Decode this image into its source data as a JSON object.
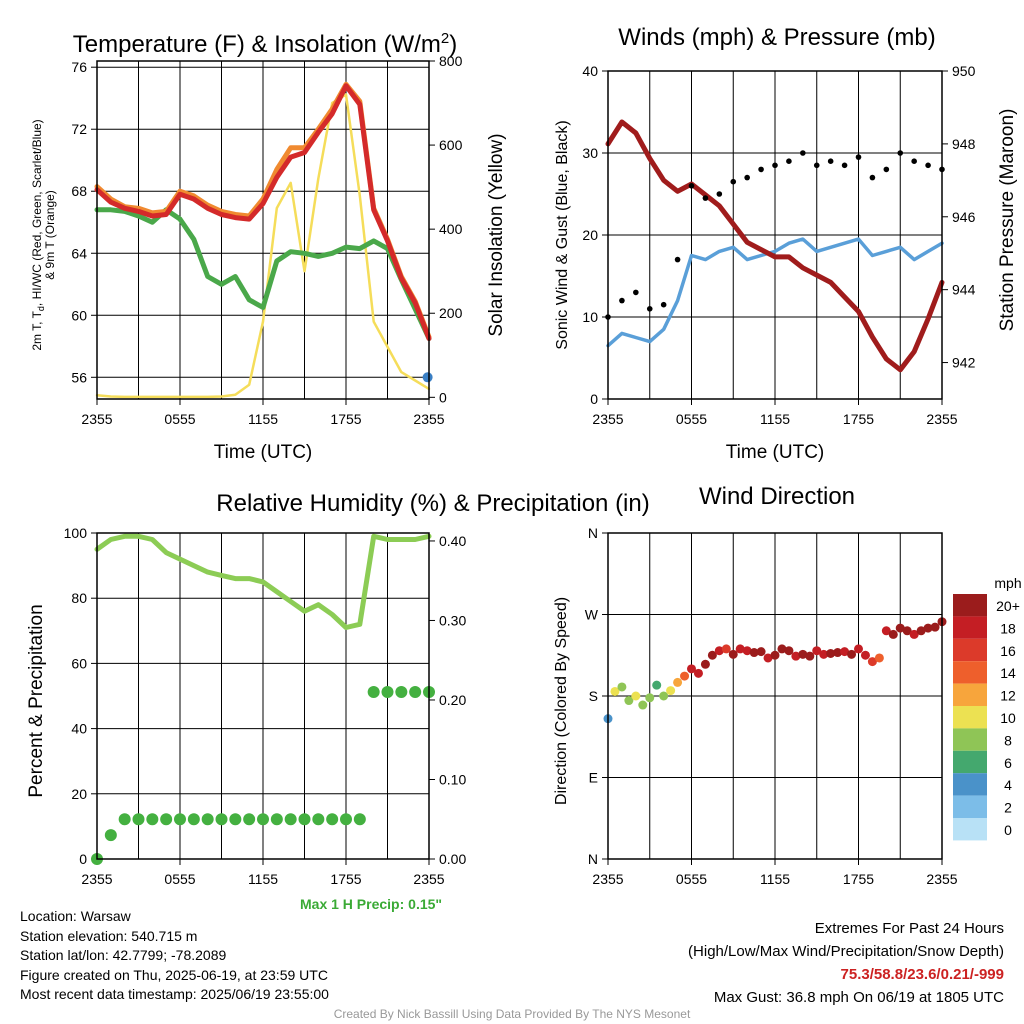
{
  "colors": {
    "red": "#d42a2a",
    "orange": "#f08a30",
    "green": "#4aa84a",
    "yellow": "#f5dd5a",
    "blue_marker": "#3a7fc4",
    "sonic_wind": "#5a9fd8",
    "gust": "#000000",
    "pressure": "#a01c1c",
    "rh": "#8ccc55",
    "precip": "#44b040"
  },
  "chart_data": [
    {
      "type": "line",
      "title": "Temperature (F) & Insolation (W/m",
      "title_sup": "2",
      "title_end": ")",
      "xlabel": "Time (UTC)",
      "ylabel_lines": [
        "2m T, T",
        "d",
        ", HI/WC (Red, Green, Scarlet/Blue)",
        "& 9m T (Orange)"
      ],
      "y2label": "Solar Insolation (Yellow)",
      "xticks": [
        "2355",
        "0555",
        "1155",
        "1755",
        "2355"
      ],
      "yticks": [
        56,
        60,
        64,
        68,
        72,
        76
      ],
      "y2ticks": [
        0,
        200,
        400,
        600,
        800
      ],
      "ylim": [
        54.6,
        76.4
      ],
      "y2lim": [
        -4,
        800
      ],
      "x": [
        0,
        1,
        2,
        3,
        4,
        5,
        6,
        7,
        8,
        9,
        10,
        11,
        12,
        13,
        14,
        15,
        16,
        17,
        18,
        19,
        20,
        21,
        22,
        23,
        24
      ],
      "series": [
        {
          "key": "temp_2m",
          "color": "red",
          "values": [
            68.1,
            67.3,
            66.9,
            66.7,
            66.4,
            66.5,
            67.8,
            67.5,
            66.9,
            66.5,
            66.3,
            66.2,
            67.2,
            68.9,
            70.2,
            70.5,
            71.8,
            73.0,
            74.8,
            73.6,
            66.8,
            64.8,
            62.4,
            60.8,
            58.5
          ]
        },
        {
          "key": "temp_9m",
          "color": "orange",
          "values": [
            68.3,
            67.5,
            67.0,
            66.9,
            66.6,
            66.7,
            68.0,
            67.7,
            67.1,
            66.7,
            66.5,
            66.4,
            67.5,
            69.4,
            70.8,
            70.8,
            72.0,
            73.3,
            74.9,
            73.8,
            66.9,
            64.9,
            62.5,
            60.9,
            58.6
          ]
        },
        {
          "key": "dewpoint",
          "color": "green",
          "values": [
            66.8,
            66.8,
            66.7,
            66.4,
            66.0,
            66.8,
            66.2,
            64.9,
            62.5,
            62.0,
            62.5,
            61.0,
            60.5,
            63.5,
            64.1,
            64.0,
            63.8,
            64.0,
            64.4,
            64.3,
            64.8,
            64.3,
            62.3,
            60.4,
            58.5
          ]
        },
        {
          "key": "insolation",
          "axis": "y2",
          "color": "yellow",
          "values": [
            5,
            2,
            1,
            1,
            1,
            1,
            1,
            1,
            1,
            2,
            6,
            30,
            180,
            450,
            510,
            300,
            520,
            700,
            720,
            480,
            180,
            120,
            60,
            40,
            20
          ]
        }
      ],
      "marker": {
        "key": "hi_wc",
        "color": "blue_marker",
        "x": 23.9,
        "y": 56.0
      }
    },
    {
      "type": "scatter",
      "title": "Winds (mph) & Pressure (mb)",
      "xlabel": "Time (UTC)",
      "ylabel": "Sonic Wind & Gust (Blue, Black)",
      "y2label": "Station Pressure (Maroon)",
      "xticks": [
        "2355",
        "0555",
        "1155",
        "1755",
        "2355"
      ],
      "yticks": [
        0,
        10,
        20,
        30,
        40
      ],
      "y2ticks": [
        942,
        944,
        946,
        948,
        950
      ],
      "ylim": [
        0,
        40
      ],
      "y2lim": [
        941,
        950
      ],
      "x": [
        0,
        1,
        2,
        3,
        4,
        5,
        6,
        7,
        8,
        9,
        10,
        11,
        12,
        13,
        14,
        15,
        16,
        17,
        18,
        19,
        20,
        21,
        22,
        23,
        24
      ],
      "series": [
        {
          "key": "sonic_wind",
          "color": "sonic_wind",
          "values": [
            6.5,
            8.0,
            7.5,
            7.0,
            8.5,
            12.0,
            17.5,
            17.0,
            18.0,
            18.5,
            17.0,
            17.5,
            18.0,
            19.0,
            19.5,
            18.0,
            18.5,
            19.0,
            19.5,
            17.5,
            18.0,
            18.5,
            17.0,
            18.0,
            19.0
          ]
        },
        {
          "key": "gust",
          "color": "gust",
          "render": "dots",
          "values": [
            10.0,
            12.0,
            13.0,
            11.0,
            11.5,
            17.0,
            26.0,
            24.5,
            25.0,
            26.5,
            27.0,
            28.0,
            28.5,
            29.0,
            30.0,
            28.5,
            29.0,
            28.5,
            29.5,
            27.0,
            28.0,
            30.0,
            29.0,
            28.5,
            28.0
          ]
        },
        {
          "key": "pressure",
          "axis": "y2",
          "color": "pressure",
          "values": [
            948.0,
            948.6,
            948.3,
            947.6,
            947.0,
            946.7,
            946.9,
            946.6,
            946.3,
            945.8,
            945.3,
            945.1,
            944.9,
            944.9,
            944.6,
            944.4,
            944.2,
            943.8,
            943.4,
            942.7,
            942.1,
            941.8,
            942.3,
            943.2,
            944.2
          ]
        }
      ]
    },
    {
      "type": "line",
      "title": "Relative Humidity (%) & Precipitation (in)",
      "ylabel": "Percent & Precipitation",
      "xticks": [
        "2355",
        "0555",
        "1155",
        "1755",
        "2355"
      ],
      "yticks": [
        0,
        20,
        40,
        60,
        80,
        100
      ],
      "y2ticks": [
        "0.00",
        "0.10",
        "0.20",
        "0.30",
        "0.40"
      ],
      "ylim": [
        0,
        100
      ],
      "y2lim": [
        0,
        0.41
      ],
      "x": [
        0,
        1,
        2,
        3,
        4,
        5,
        6,
        7,
        8,
        9,
        10,
        11,
        12,
        13,
        14,
        15,
        16,
        17,
        18,
        19,
        20,
        21,
        22,
        23,
        24
      ],
      "series": [
        {
          "key": "rh",
          "color": "rh",
          "values": [
            95,
            98,
            99,
            99,
            98,
            94,
            92,
            90,
            88,
            87,
            86,
            86,
            85,
            82,
            79,
            76,
            78,
            75,
            71,
            72,
            99,
            98,
            98,
            98,
            99
          ]
        },
        {
          "key": "precip",
          "axis": "y2",
          "color": "precip",
          "render": "dots",
          "values": [
            0.0,
            0.03,
            0.05,
            0.05,
            0.05,
            0.05,
            0.05,
            0.05,
            0.05,
            0.05,
            0.05,
            0.05,
            0.05,
            0.05,
            0.05,
            0.05,
            0.05,
            0.05,
            0.05,
            0.05,
            0.21,
            0.21,
            0.21,
            0.21,
            0.21
          ]
        }
      ],
      "note": "Max 1 H Precip: 0.15\""
    },
    {
      "type": "scatter",
      "title": "Wind Direction",
      "ylabel": "Direction (Colored By Speed)",
      "xticks": [
        "2355",
        "0555",
        "1155",
        "1755",
        "2355"
      ],
      "yticks": [
        "N",
        "E",
        "S",
        "W",
        "N"
      ],
      "ylim": [
        0,
        360
      ],
      "x": [
        0.0,
        0.5,
        1.0,
        1.5,
        2.0,
        2.5,
        3.0,
        3.5,
        4.0,
        4.5,
        5.0,
        5.5,
        6.0,
        6.5,
        7.0,
        7.5,
        8.0,
        8.5,
        9.0,
        9.5,
        10.0,
        10.5,
        11.0,
        11.5,
        12.0,
        12.5,
        13.0,
        13.5,
        14.0,
        14.5,
        15.0,
        15.5,
        16.0,
        16.5,
        17.0,
        17.5,
        18.0,
        18.5,
        19.0,
        19.5,
        20.0,
        20.5,
        21.0,
        21.5,
        22.0,
        22.5,
        23.0,
        23.5,
        24.0
      ],
      "directions": [
        155,
        185,
        190,
        175,
        180,
        170,
        178,
        192,
        180,
        186,
        195,
        202,
        210,
        205,
        215,
        225,
        230,
        232,
        226,
        232,
        230,
        228,
        229,
        222,
        225,
        232,
        230,
        224,
        226,
        224,
        230,
        226,
        227,
        228,
        229,
        226,
        232,
        225,
        218,
        222,
        252,
        248,
        255,
        252,
        248,
        252,
        255,
        256,
        262
      ],
      "speeds": [
        4,
        10,
        8,
        7,
        9,
        8,
        7,
        6,
        7,
        10,
        12,
        14,
        18,
        17,
        20,
        19,
        18,
        15,
        19,
        17,
        18,
        19,
        20,
        18,
        19,
        20,
        19,
        18,
        20,
        19,
        18,
        17,
        20,
        19,
        18,
        19,
        18,
        17,
        15,
        13,
        18,
        20,
        20,
        19,
        18,
        19,
        20,
        19,
        20
      ],
      "legend_title": "mph",
      "legend_labels": [
        "20+",
        "18",
        "16",
        "14",
        "12",
        "10",
        "8",
        "6",
        "4",
        "2",
        "0"
      ],
      "legend_colors": [
        "#9b1c1c",
        "#c41e24",
        "#dc3a2a",
        "#ee5f2c",
        "#f7a53c",
        "#ece152",
        "#8fc556",
        "#44a86e",
        "#4a92c9",
        "#7cbde8",
        "#b8e1f6"
      ]
    }
  ],
  "footer": {
    "location": "Location: Warsaw",
    "elevation": "Station elevation: 540.715 m",
    "latlon": "Station lat/lon: 42.7799; -78.2089",
    "created": "Figure created on Thu, 2025-06-19, at 23:59 UTC",
    "recent": "Most recent data timestamp: 2025/06/19 23:55:00",
    "extremes_title": "Extremes For Past 24 Hours",
    "extremes_desc": "(High/Low/Max Wind/Precipitation/Snow Depth)",
    "extremes_values": "75.3/58.8/23.6/0.21/-999",
    "max_gust": "Max Gust: 36.8 mph On 06/19 at 1805 UTC",
    "credit": "Created By Nick Bassill Using Data Provided By The NYS Mesonet"
  }
}
